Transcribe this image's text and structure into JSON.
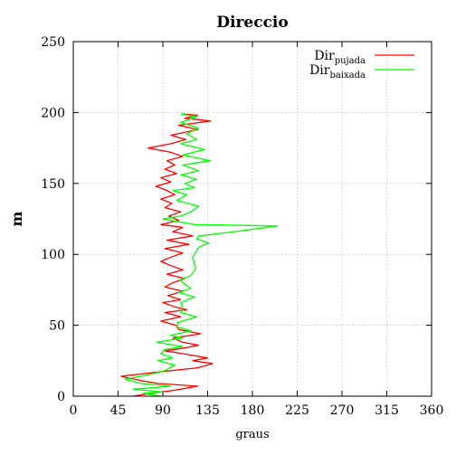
{
  "chart_data": {
    "type": "line",
    "title": "Direccio",
    "xlabel": "graus",
    "ylabel": "m",
    "xlim": [
      0,
      360
    ],
    "ylim": [
      0,
      250
    ],
    "x_ticks": [
      "0",
      "45",
      "90",
      "135",
      "180",
      "225",
      "270",
      "315",
      "360"
    ],
    "y_ticks": [
      "0",
      "50",
      "100",
      "150",
      "200",
      "250"
    ],
    "grid": true,
    "legend_position": "top-right",
    "series": [
      {
        "name": "Dir",
        "name_subscript": "pujada",
        "color": "#ff0000",
        "points": [
          [
            60,
            0
          ],
          [
            78,
            2
          ],
          [
            100,
            4
          ],
          [
            125,
            7
          ],
          [
            85,
            9
          ],
          [
            68,
            11
          ],
          [
            48,
            14
          ],
          [
            85,
            17
          ],
          [
            125,
            20
          ],
          [
            140,
            23
          ],
          [
            120,
            25
          ],
          [
            135,
            27
          ],
          [
            110,
            30
          ],
          [
            92,
            32
          ],
          [
            112,
            34
          ],
          [
            126,
            36
          ],
          [
            110,
            38
          ],
          [
            100,
            41
          ],
          [
            128,
            44
          ],
          [
            106,
            47
          ],
          [
            103,
            50
          ],
          [
            88,
            53
          ],
          [
            108,
            56
          ],
          [
            92,
            59
          ],
          [
            114,
            61
          ],
          [
            102,
            63
          ],
          [
            90,
            66
          ],
          [
            108,
            68
          ],
          [
            95,
            71
          ],
          [
            110,
            74
          ],
          [
            92,
            77
          ],
          [
            100,
            80
          ],
          [
            112,
            83
          ],
          [
            94,
            86
          ],
          [
            110,
            89
          ],
          [
            98,
            92
          ],
          [
            88,
            95
          ],
          [
            98,
            98
          ],
          [
            110,
            101
          ],
          [
            92,
            104
          ],
          [
            116,
            107
          ],
          [
            94,
            110
          ],
          [
            120,
            113
          ],
          [
            100,
            116
          ],
          [
            110,
            119
          ],
          [
            88,
            121
          ],
          [
            106,
            124
          ],
          [
            96,
            127
          ],
          [
            108,
            130
          ],
          [
            92,
            133
          ],
          [
            99,
            136
          ],
          [
            88,
            139
          ],
          [
            102,
            142
          ],
          [
            94,
            145
          ],
          [
            83,
            148
          ],
          [
            98,
            151
          ],
          [
            88,
            154
          ],
          [
            104,
            157
          ],
          [
            92,
            160
          ],
          [
            102,
            163
          ],
          [
            94,
            166
          ],
          [
            110,
            169
          ],
          [
            98,
            172
          ],
          [
            75,
            175
          ],
          [
            98,
            178
          ],
          [
            113,
            181
          ],
          [
            98,
            184
          ],
          [
            125,
            188
          ],
          [
            106,
            191
          ],
          [
            138,
            194
          ],
          [
            112,
            196
          ],
          [
            125,
            198
          ],
          [
            110,
            199
          ]
        ]
      },
      {
        "name": "Dir",
        "name_subscript": "baixada",
        "color": "#00ff00",
        "points": [
          [
            88,
            0
          ],
          [
            70,
            2
          ],
          [
            90,
            3
          ],
          [
            60,
            5
          ],
          [
            98,
            7
          ],
          [
            68,
            9
          ],
          [
            52,
            12
          ],
          [
            75,
            15
          ],
          [
            92,
            18
          ],
          [
            102,
            22
          ],
          [
            85,
            25
          ],
          [
            100,
            27
          ],
          [
            88,
            30
          ],
          [
            92,
            33
          ],
          [
            110,
            35
          ],
          [
            84,
            38
          ],
          [
            110,
            41
          ],
          [
            98,
            43
          ],
          [
            118,
            46
          ],
          [
            104,
            49
          ],
          [
            105,
            52
          ],
          [
            124,
            56
          ],
          [
            108,
            59
          ],
          [
            110,
            62
          ],
          [
            108,
            66
          ],
          [
            122,
            70
          ],
          [
            106,
            73
          ],
          [
            118,
            76
          ],
          [
            112,
            79
          ],
          [
            107,
            82
          ],
          [
            118,
            85
          ],
          [
            123,
            90
          ],
          [
            120,
            98
          ],
          [
            126,
            105
          ],
          [
            136,
            108
          ],
          [
            124,
            111
          ],
          [
            126,
            113
          ],
          [
            162,
            116
          ],
          [
            205,
            120
          ],
          [
            122,
            121
          ],
          [
            90,
            125
          ],
          [
            108,
            127
          ],
          [
            118,
            130
          ],
          [
            126,
            134
          ],
          [
            104,
            138
          ],
          [
            114,
            142
          ],
          [
            100,
            145
          ],
          [
            122,
            147
          ],
          [
            112,
            150
          ],
          [
            124,
            153
          ],
          [
            108,
            156
          ],
          [
            126,
            159
          ],
          [
            110,
            163
          ],
          [
            138,
            166
          ],
          [
            110,
            170
          ],
          [
            132,
            174
          ],
          [
            108,
            178
          ],
          [
            124,
            181
          ],
          [
            114,
            185
          ],
          [
            126,
            189
          ],
          [
            108,
            193
          ],
          [
            124,
            197
          ],
          [
            108,
            199
          ]
        ]
      }
    ]
  }
}
